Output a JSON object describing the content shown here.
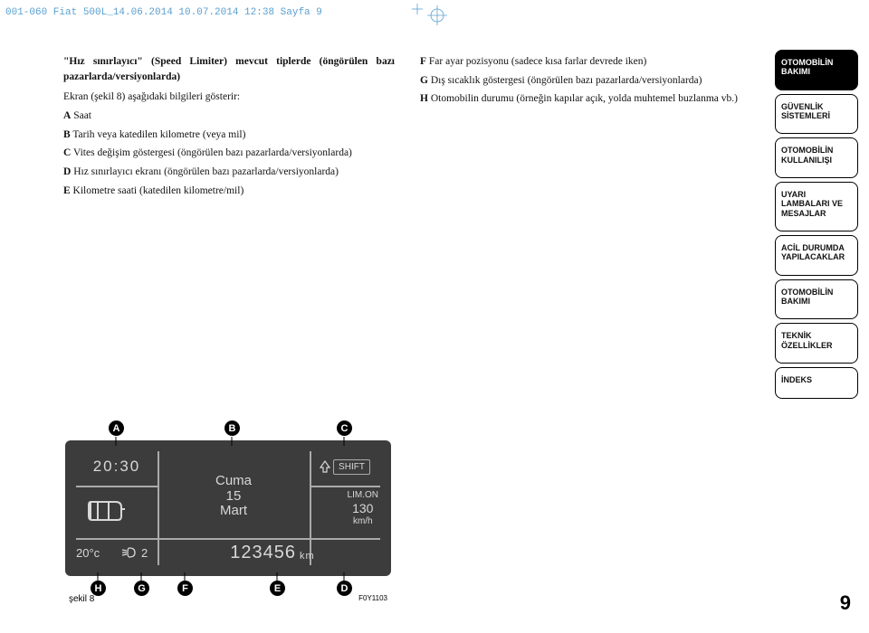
{
  "header": "001-060 Fiat 500L_14.06.2014  10.07.2014  12:38  Sayfa 9",
  "left": {
    "heading": "\"Hız sınırlayıcı\" (Speed Limiter) mevcut tiplerde (öngörülen bazı pazarlarda/versiyonlarda)",
    "intro": "Ekran (şekil 8) aşağıdaki bilgileri gösterir:",
    "items": [
      {
        "l": "A",
        "t": "Saat"
      },
      {
        "l": "B",
        "t": "Tarih veya katedilen kilometre (veya mil)"
      },
      {
        "l": "C",
        "t": "Vites değişim göstergesi (öngörülen bazı pazarlarda/versiyonlarda)"
      },
      {
        "l": "D",
        "t": "Hız sınırlayıcı ekranı (öngörülen bazı pazarlarda/versiyonlarda)"
      },
      {
        "l": "E",
        "t": "Kilometre saati (katedilen kilometre/mil)"
      }
    ]
  },
  "right": {
    "items": [
      {
        "l": "F",
        "t": "Far ayar pozisyonu (sadece kısa farlar devrede iken)"
      },
      {
        "l": "G",
        "t": "Dış sıcaklık göstergesi (öngörülen bazı pazarlarda/versiyonlarda)"
      },
      {
        "l": "H",
        "t": "Otomobilin durumu (örneğin kapılar açık, yolda muhtemel buzlanma vb.)"
      }
    ]
  },
  "tabs": [
    {
      "t": "OTOMOBİLİN BAKIMI",
      "active": true
    },
    {
      "t": "GÜVENLİK SİSTEMLERİ",
      "active": false
    },
    {
      "t": "OTOMOBİLİN KULLANILIŞI",
      "active": false
    },
    {
      "t": "UYARI LAMBALARI VE MESAJLAR",
      "active": false
    },
    {
      "t": "ACİL DURUMDA YAPILACAKLAR",
      "active": false
    },
    {
      "t": "OTOMOBİLİN BAKIMI",
      "active": false
    },
    {
      "t": "TEKNİK ÖZELLİKLER",
      "active": false
    },
    {
      "t": "İNDEKS",
      "active": false
    }
  ],
  "lcd": {
    "time": "20:30",
    "day_name": "Cuma",
    "day_num": "15",
    "month": "Mart",
    "shift": "SHIFT",
    "limon": "LIM.ON",
    "limit": "130",
    "unit": "km/h",
    "temp": "20°c",
    "fan": "2",
    "odometer": "123456",
    "odo_unit": "km",
    "callouts_top": [
      "A",
      "B",
      "C"
    ],
    "callouts_bottom": [
      "H",
      "G",
      "F",
      "E",
      "D"
    ]
  },
  "fig": {
    "caption": "şekil 8",
    "code": "F0Y1103"
  },
  "page": "9",
  "colors": {
    "header": "#5aa0d0",
    "lcd_bg": "#3c3c3c",
    "lcd_fg": "#d8d8d8"
  }
}
